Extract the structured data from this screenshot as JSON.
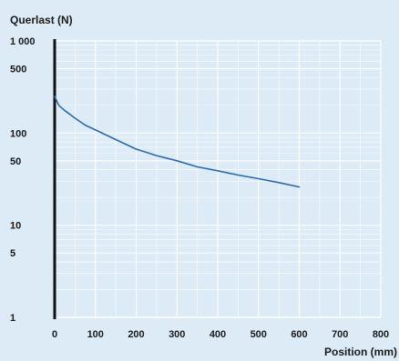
{
  "chart_data": {
    "type": "line",
    "title": "",
    "ylabel": "Querlast (N)",
    "xlabel": "Position (mm)",
    "xlim": [
      0,
      800
    ],
    "ylim": [
      1,
      1000
    ],
    "y_scale": "log",
    "grid": true,
    "legend": "none",
    "x_ticks": [
      0,
      100,
      200,
      300,
      400,
      500,
      600,
      700,
      800
    ],
    "x_tick_labels": [
      "0",
      "100",
      "200",
      "300",
      "400",
      "500",
      "600",
      "700",
      "800"
    ],
    "y_ticks": [
      1,
      5,
      10,
      50,
      100,
      500,
      1000
    ],
    "y_tick_labels": [
      "1",
      "5",
      "10",
      "50",
      "100",
      "500",
      "1 000"
    ],
    "series": [
      {
        "color": "#2a6aa8",
        "x": [
          0,
          10,
          25,
          50,
          75,
          100,
          150,
          200,
          250,
          300,
          350,
          400,
          450,
          500,
          550,
          600
        ],
        "y": [
          250,
          200,
          175,
          145,
          122,
          108,
          85,
          67,
          57,
          50,
          43,
          39,
          35,
          32,
          29,
          26
        ]
      }
    ]
  }
}
